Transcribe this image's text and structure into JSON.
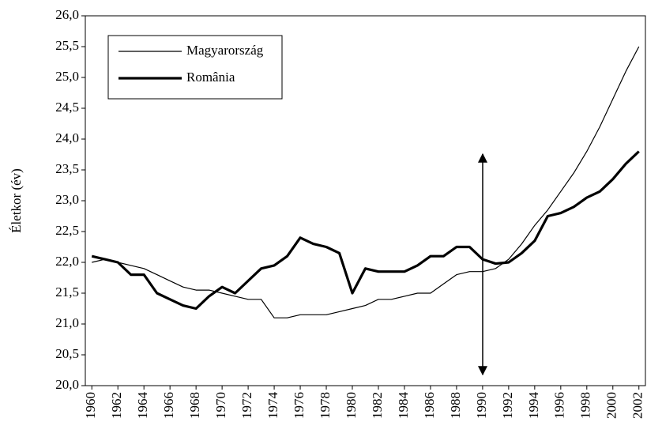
{
  "chart_data": {
    "type": "line",
    "ylabel": "Életkor (év)",
    "x": [
      1960,
      1961,
      1962,
      1963,
      1964,
      1965,
      1966,
      1967,
      1968,
      1969,
      1970,
      1971,
      1972,
      1973,
      1974,
      1975,
      1976,
      1977,
      1978,
      1979,
      1980,
      1981,
      1982,
      1983,
      1984,
      1985,
      1986,
      1987,
      1988,
      1989,
      1990,
      1991,
      1992,
      1993,
      1994,
      1995,
      1996,
      1997,
      1998,
      1999,
      2000,
      2001,
      2002
    ],
    "xlim": [
      1959.5,
      2002.5
    ],
    "xticks": [
      1960,
      1962,
      1964,
      1966,
      1968,
      1970,
      1972,
      1974,
      1976,
      1978,
      1980,
      1982,
      1984,
      1986,
      1988,
      1990,
      1992,
      1994,
      1996,
      1998,
      2000,
      2002
    ],
    "ylim": [
      20,
      26
    ],
    "yticks": [
      {
        "value": 20,
        "label": "20,0"
      },
      {
        "value": 20.5,
        "label": "20,5"
      },
      {
        "value": 21,
        "label": "21,0"
      },
      {
        "value": 21.5,
        "label": "21,5"
      },
      {
        "value": 22,
        "label": "22,0"
      },
      {
        "value": 22.5,
        "label": "22,5"
      },
      {
        "value": 23,
        "label": "23,0"
      },
      {
        "value": 23.5,
        "label": "23,5"
      },
      {
        "value": 24,
        "label": "24,0"
      },
      {
        "value": 24.5,
        "label": "24,5"
      },
      {
        "value": 25,
        "label": "25,0"
      },
      {
        "value": 25.5,
        "label": "25,5"
      },
      {
        "value": 26,
        "label": "26,0"
      }
    ],
    "series": [
      {
        "name": "Magyarország",
        "color": "#000000",
        "values": [
          22.0,
          22.05,
          22.0,
          21.95,
          21.9,
          21.8,
          21.7,
          21.6,
          21.55,
          21.55,
          21.5,
          21.45,
          21.4,
          21.4,
          21.1,
          21.1,
          21.15,
          21.15,
          21.15,
          21.2,
          21.25,
          21.3,
          21.4,
          21.4,
          21.45,
          21.5,
          21.5,
          21.65,
          21.8,
          21.85,
          21.85,
          21.9,
          22.05,
          22.3,
          22.6,
          22.85,
          23.15,
          23.45,
          23.8,
          24.2,
          24.65,
          25.1,
          25.5
        ]
      },
      {
        "name": "România",
        "color": "#000000",
        "values": [
          22.1,
          22.05,
          22.0,
          21.8,
          21.8,
          21.5,
          21.4,
          21.3,
          21.25,
          21.45,
          21.6,
          21.5,
          21.7,
          21.9,
          21.95,
          22.1,
          22.4,
          22.3,
          22.25,
          22.15,
          21.5,
          21.9,
          21.85,
          21.85,
          21.85,
          21.95,
          22.1,
          22.1,
          22.25,
          22.25,
          22.05,
          21.98,
          22.0,
          22.15,
          22.35,
          22.75,
          22.8,
          22.9,
          23.05,
          23.15,
          23.35,
          23.6,
          23.8
        ]
      }
    ]
  }
}
